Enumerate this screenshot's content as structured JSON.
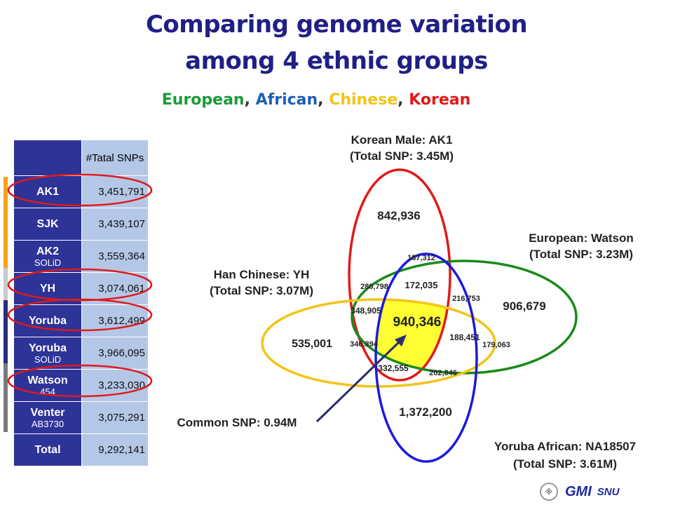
{
  "title_line1": "Comparing genome variation",
  "title_line2": "among 4 ethnic groups",
  "groups_legend": [
    {
      "text": "European",
      "color": "#1a9a3a"
    },
    {
      "text": "African",
      "color": "#1f5fb5"
    },
    {
      "text": "Chinese",
      "color": "#f2c418"
    },
    {
      "text": "Korean",
      "color": "#e01a1a"
    }
  ],
  "legend_separator": ", ",
  "table": {
    "header_value": "#Tatal SNPs",
    "rows": [
      {
        "name": "AK1",
        "sub": "",
        "value": "3,451,791",
        "circled": true
      },
      {
        "name": "SJK",
        "sub": "",
        "value": "3,439,107",
        "circled": false
      },
      {
        "name": "AK2",
        "sub": "SOLiD",
        "value": "3,559,364",
        "circled": false
      },
      {
        "name": "YH",
        "sub": "",
        "value": "3,074,061",
        "circled": true
      },
      {
        "name": "Yoruba",
        "sub": "",
        "value": "3,612,499",
        "circled": true
      },
      {
        "name": "Yoruba",
        "sub": "SOLiD",
        "value": "3,966,095",
        "circled": false
      },
      {
        "name": "Watson",
        "sub": "454",
        "value": "3,233,030",
        "circled": true
      },
      {
        "name": "Venter",
        "sub": "AB3730",
        "value": "3,075,291",
        "circled": false
      },
      {
        "name": "Total",
        "sub": "",
        "value": "9,292,141",
        "circled": false
      }
    ],
    "side_bar_colors": [
      "#f5a316",
      "#c9c9c9",
      "#2a2d7a",
      "#7a7a7a"
    ]
  },
  "venn": {
    "sets": [
      {
        "key": "korean",
        "title": "Korean Male: AK1",
        "total": "(Total SNP: 3.45M)",
        "color": "#e01a1a"
      },
      {
        "key": "european",
        "title": "European: Watson",
        "total": "(Total SNP: 3.23M)",
        "color": "#1a8a1a"
      },
      {
        "key": "chinese",
        "title": "Han Chinese: YH",
        "total": "(Total SNP: 3.07M)",
        "color": "#f2c418"
      },
      {
        "key": "african",
        "title": "Yoruba African: NA18507",
        "total": "(Total SNP: 3.61M)",
        "color": "#1a1ae0"
      }
    ],
    "regions": [
      "842,936",
      "187,312",
      "280,798",
      "172,035",
      "216,753",
      "906,679",
      "348,905",
      "940,346",
      "188,451",
      "179,063",
      "535,001",
      "346,894",
      "332,555",
      "202,846",
      "1,372,200"
    ],
    "common_fill": "#ffff33",
    "common_label": "Common SNP: 0.94M"
  },
  "footer": {
    "logo_glyph": "※",
    "org": "GMI",
    "unit": "SNU"
  }
}
